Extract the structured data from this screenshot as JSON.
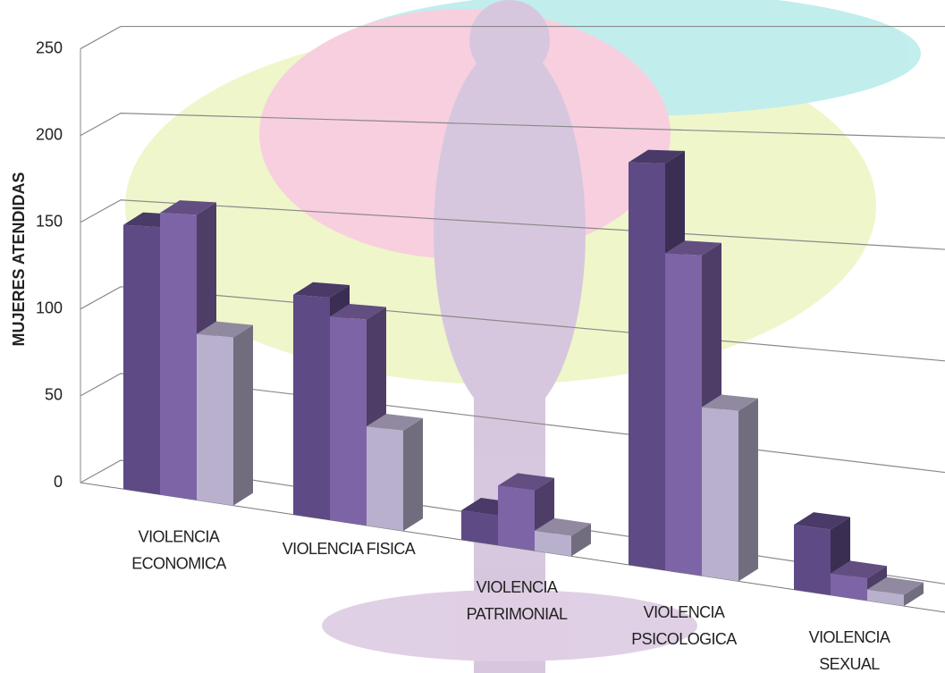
{
  "chart_data": {
    "type": "bar3d",
    "y_label": "MUJERES ATENDIDAS",
    "categories": [
      [
        "VIOLENCIA",
        "ECONOMICA"
      ],
      [
        "VIOLENCIA FISICA"
      ],
      [
        "VIOLENCIA",
        "PATRIMONIAL"
      ],
      [
        "VIOLENCIA",
        "PSICOLOGICA"
      ],
      [
        "VIOLENCIA",
        "SEXUAL"
      ]
    ],
    "series": [
      {
        "color": "#5e4a85",
        "values": [
          150,
          118,
          15,
          195,
          30
        ]
      },
      {
        "color": "#7d64a6",
        "values": [
          158,
          108,
          30,
          152,
          10
        ]
      },
      {
        "color": "#b8b0cc",
        "values": [
          92,
          52,
          10,
          80,
          5
        ]
      }
    ],
    "ylim": [
      0,
      250
    ],
    "yticks": [
      0,
      50,
      100,
      150,
      200,
      250
    ],
    "grid": true
  }
}
